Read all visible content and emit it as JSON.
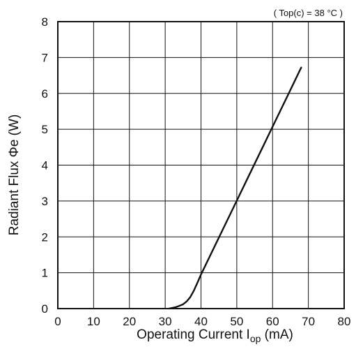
{
  "chart_data": {
    "type": "line",
    "annotation": "( Top(c) = 38 °C )",
    "xlabel": {
      "main": "Operating Current  I",
      "sub": "op",
      "tail": " (mA)"
    },
    "ylabel": "Radiant Flux  Φe  (W)",
    "xlim": [
      0,
      80
    ],
    "ylim": [
      0,
      8
    ],
    "x_ticks": [
      "0",
      "10",
      "20",
      "30",
      "40",
      "50",
      "60",
      "70",
      "80"
    ],
    "y_ticks": [
      "0",
      "1",
      "2",
      "3",
      "4",
      "5",
      "6",
      "7",
      "8"
    ],
    "grid": true,
    "series": [
      {
        "x": [
          31,
          33,
          35,
          36,
          37,
          38,
          39,
          40,
          45,
          50,
          55,
          60,
          65,
          68
        ],
        "y": [
          0,
          0.04,
          0.12,
          0.2,
          0.32,
          0.5,
          0.72,
          0.95,
          1.98,
          3.01,
          4.04,
          5.07,
          6.1,
          6.72
        ]
      }
    ]
  }
}
